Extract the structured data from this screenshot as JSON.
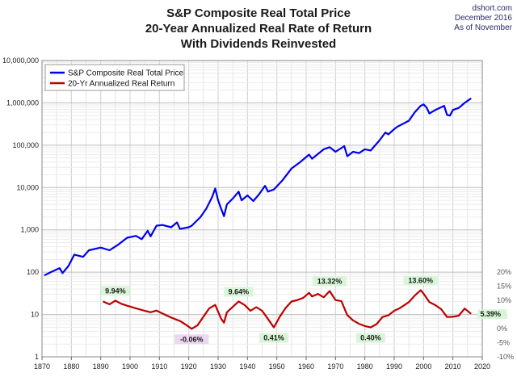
{
  "title_lines": [
    "S&P Composite Real Total Price",
    "20-Year Annualized Real Rate of Return",
    "With Dividends Reinvested"
  ],
  "credit_lines": [
    "dshort.com",
    "December 2016",
    "As of November"
  ],
  "chart_data": {
    "type": "line",
    "title": "S&P Composite Real Total Price 20-Year Annualized Real Rate of Return With Dividends Reinvested",
    "x_range": [
      1870,
      2020
    ],
    "x_ticks": [
      "1870",
      "1880",
      "1890",
      "1900",
      "1910",
      "1920",
      "1930",
      "1940",
      "1950",
      "1960",
      "1970",
      "1980",
      "1990",
      "2000",
      "2010",
      "2020"
    ],
    "left_axis": {
      "scale": "log",
      "range": [
        1,
        10000000
      ],
      "tick_labels": [
        "1",
        "10",
        "100",
        "1,000",
        "10,000",
        "100,000",
        "1,000,000",
        "10,000,000"
      ]
    },
    "right_axis": {
      "range_percent": [
        -10,
        20
      ],
      "tick_labels": [
        "-10%",
        "-5%",
        "0%",
        "5%",
        "10%",
        "15%",
        "20%"
      ]
    },
    "legend_position": "top-left",
    "grid": true,
    "series": [
      {
        "name": "S&P Composite Real Total Price",
        "color": "#0000ee",
        "axis": "left",
        "points": [
          [
            1871,
            85
          ],
          [
            1873,
            100
          ],
          [
            1876,
            125
          ],
          [
            1877,
            95
          ],
          [
            1879,
            140
          ],
          [
            1881,
            260
          ],
          [
            1884,
            230
          ],
          [
            1886,
            330
          ],
          [
            1890,
            380
          ],
          [
            1893,
            330
          ],
          [
            1896,
            450
          ],
          [
            1899,
            650
          ],
          [
            1902,
            720
          ],
          [
            1904,
            600
          ],
          [
            1906,
            950
          ],
          [
            1907,
            700
          ],
          [
            1909,
            1250
          ],
          [
            1911,
            1300
          ],
          [
            1914,
            1150
          ],
          [
            1916,
            1500
          ],
          [
            1917,
            1050
          ],
          [
            1920,
            1150
          ],
          [
            1921,
            1250
          ],
          [
            1924,
            2000
          ],
          [
            1926,
            3200
          ],
          [
            1928,
            6000
          ],
          [
            1929,
            9500
          ],
          [
            1930,
            5000
          ],
          [
            1931,
            3200
          ],
          [
            1932,
            2100
          ],
          [
            1933,
            4000
          ],
          [
            1935,
            5500
          ],
          [
            1937,
            8000
          ],
          [
            1938,
            5000
          ],
          [
            1940,
            6500
          ],
          [
            1942,
            4800
          ],
          [
            1944,
            7000
          ],
          [
            1946,
            11000
          ],
          [
            1947,
            8000
          ],
          [
            1949,
            9000
          ],
          [
            1952,
            15000
          ],
          [
            1955,
            28000
          ],
          [
            1958,
            40000
          ],
          [
            1961,
            60000
          ],
          [
            1962,
            48000
          ],
          [
            1966,
            80000
          ],
          [
            1968,
            90000
          ],
          [
            1970,
            70000
          ],
          [
            1973,
            95000
          ],
          [
            1974,
            55000
          ],
          [
            1976,
            70000
          ],
          [
            1978,
            65000
          ],
          [
            1980,
            80000
          ],
          [
            1982,
            75000
          ],
          [
            1985,
            130000
          ],
          [
            1987,
            200000
          ],
          [
            1988,
            180000
          ],
          [
            1990,
            240000
          ],
          [
            1991,
            270000
          ],
          [
            1995,
            380000
          ],
          [
            1997,
            600000
          ],
          [
            1999,
            850000
          ],
          [
            2000,
            920000
          ],
          [
            2001,
            780000
          ],
          [
            2002,
            560000
          ],
          [
            2004,
            680000
          ],
          [
            2007,
            850000
          ],
          [
            2008,
            520000
          ],
          [
            2009,
            500000
          ],
          [
            2010,
            680000
          ],
          [
            2012,
            760000
          ],
          [
            2014,
            1000000
          ],
          [
            2016,
            1250000
          ]
        ]
      },
      {
        "name": "20-Yr Annualized Real Return",
        "color": "#bb0000",
        "axis": "right",
        "points": [
          [
            1891,
            9.5
          ],
          [
            1893,
            8.6
          ],
          [
            1895,
            9.9
          ],
          [
            1897,
            8.8
          ],
          [
            1899,
            8.1
          ],
          [
            1902,
            7.2
          ],
          [
            1905,
            6.3
          ],
          [
            1907,
            5.8
          ],
          [
            1909,
            6.4
          ],
          [
            1911,
            5.4
          ],
          [
            1914,
            3.9
          ],
          [
            1917,
            2.7
          ],
          [
            1919,
            1.4
          ],
          [
            1921,
            -0.06
          ],
          [
            1923,
            1.2
          ],
          [
            1925,
            4.2
          ],
          [
            1927,
            7.2
          ],
          [
            1929,
            8.4
          ],
          [
            1931,
            3.6
          ],
          [
            1932,
            2.1
          ],
          [
            1933,
            5.8
          ],
          [
            1935,
            7.7
          ],
          [
            1937,
            9.64
          ],
          [
            1939,
            8.4
          ],
          [
            1941,
            6.3
          ],
          [
            1943,
            7.6
          ],
          [
            1945,
            6.3
          ],
          [
            1947,
            3.4
          ],
          [
            1949,
            0.41
          ],
          [
            1951,
            4.2
          ],
          [
            1953,
            7.3
          ],
          [
            1955,
            9.6
          ],
          [
            1957,
            10.1
          ],
          [
            1959,
            10.9
          ],
          [
            1961,
            12.7
          ],
          [
            1962,
            11.4
          ],
          [
            1964,
            12.3
          ],
          [
            1966,
            11.1
          ],
          [
            1968,
            13.32
          ],
          [
            1970,
            10.1
          ],
          [
            1972,
            9.7
          ],
          [
            1974,
            4.8
          ],
          [
            1976,
            2.9
          ],
          [
            1978,
            1.7
          ],
          [
            1980,
            0.9
          ],
          [
            1982,
            0.4
          ],
          [
            1984,
            1.6
          ],
          [
            1986,
            4.1
          ],
          [
            1988,
            4.7
          ],
          [
            1990,
            6.3
          ],
          [
            1992,
            7.3
          ],
          [
            1995,
            9.4
          ],
          [
            1997,
            11.7
          ],
          [
            1999,
            13.6
          ],
          [
            2000,
            12.4
          ],
          [
            2002,
            9.4
          ],
          [
            2004,
            8.3
          ],
          [
            2006,
            6.9
          ],
          [
            2008,
            4.1
          ],
          [
            2010,
            4.2
          ],
          [
            2012,
            4.6
          ],
          [
            2014,
            7.1
          ],
          [
            2016,
            5.39
          ]
        ]
      }
    ],
    "annotations": [
      {
        "text": "9.94%",
        "x": 1895,
        "y": 9.94,
        "bg": "#d8f5d8"
      },
      {
        "text": "-0.06%",
        "x": 1921,
        "y": -0.06,
        "bg": "#ecd6f2"
      },
      {
        "text": "9.64%",
        "x": 1937,
        "y": 9.64,
        "bg": "#d8f5d8"
      },
      {
        "text": "0.41%",
        "x": 1949,
        "y": 0.41,
        "bg": "#d8f5d8"
      },
      {
        "text": "13.32%",
        "x": 1968,
        "y": 13.32,
        "bg": "#d8f5d8"
      },
      {
        "text": "0.40%",
        "x": 1982,
        "y": 0.4,
        "bg": "#d8f5d8"
      },
      {
        "text": "13.60%",
        "x": 1999,
        "y": 13.6,
        "bg": "#d8f5d8"
      },
      {
        "text": "5.39%",
        "x": 2016,
        "y": 5.39,
        "bg": "#d8f5d8"
      }
    ]
  }
}
